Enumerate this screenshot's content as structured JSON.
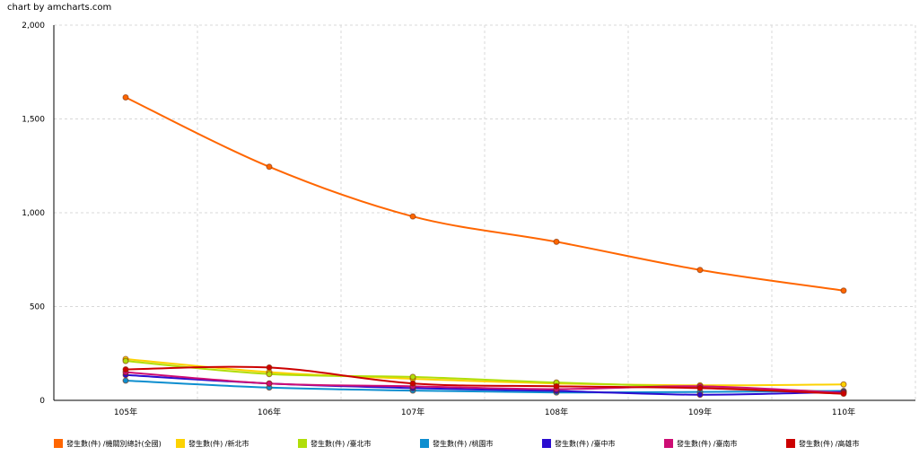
{
  "credit": "chart by amcharts.com",
  "chart_data": {
    "type": "line",
    "title": "",
    "xlabel": "",
    "ylabel": "",
    "categories": [
      "105年",
      "106年",
      "107年",
      "108年",
      "109年",
      "110年"
    ],
    "ylim": [
      0,
      2000
    ],
    "yticks": [
      0,
      500,
      1000,
      1500,
      2000
    ],
    "ytick_labels": [
      "0",
      "500",
      "1,000",
      "1,500",
      "2,000"
    ],
    "grid": true,
    "legend_position": "bottom",
    "series": [
      {
        "name": "發生數(件) /機關別總計(全國)",
        "color": "#FF6600",
        "values": [
          1615,
          1245,
          980,
          845,
          695,
          585
        ]
      },
      {
        "name": "發生數(件) /新北市",
        "color": "#FCD202",
        "values": [
          220,
          150,
          115,
          90,
          80,
          85
        ]
      },
      {
        "name": "發生數(件) /臺北市",
        "color": "#B0DE09",
        "values": [
          210,
          140,
          125,
          95,
          70,
          45
        ]
      },
      {
        "name": "發生數(件) /桃園市",
        "color": "#0D8ECF",
        "values": [
          105,
          68,
          52,
          42,
          45,
          50
        ]
      },
      {
        "name": "發生數(件) /臺中市",
        "color": "#2A0CD0",
        "values": [
          135,
          90,
          65,
          50,
          30,
          45
        ]
      },
      {
        "name": "發生數(件) /臺南市",
        "color": "#CD0D74",
        "values": [
          150,
          90,
          75,
          60,
          75,
          40
        ]
      },
      {
        "name": "發生數(件) /高雄市",
        "color": "#CC0000",
        "values": [
          165,
          175,
          90,
          75,
          65,
          35
        ]
      }
    ]
  }
}
